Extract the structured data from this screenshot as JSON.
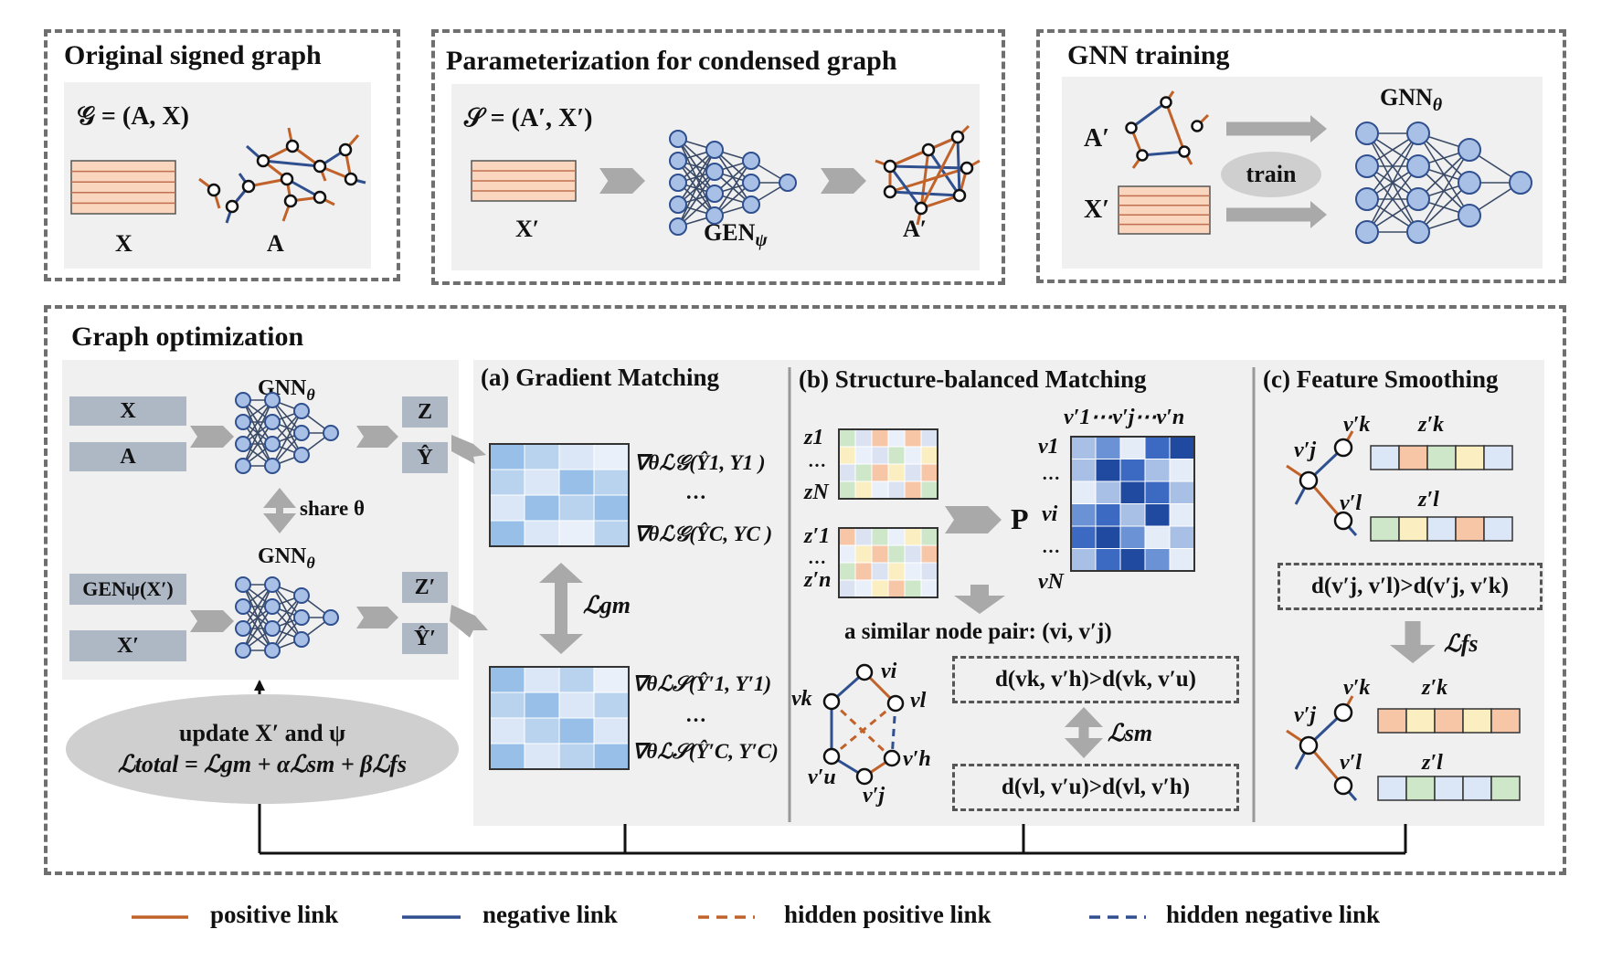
{
  "sections": {
    "original": {
      "title": "Original signed graph",
      "formula": "𝒢 = (A, X)",
      "x_label": "X",
      "a_label": "A"
    },
    "param": {
      "title": "Parameterization for condensed graph",
      "formula": "𝒮 = (A′, X′)",
      "x_label": "X′",
      "gen_label": "GEN",
      "gen_sub": "ψ",
      "a_label": "A′"
    },
    "training": {
      "title": "GNN training",
      "a_label": "A′",
      "x_label": "X′",
      "train_label": "train",
      "gnn_label": "GNN",
      "gnn_sub": "θ"
    },
    "optimization": {
      "title": "Graph optimization",
      "top_inputs": [
        "X",
        "A"
      ],
      "bottom_inputs": [
        "GENψ(X′)",
        "X′"
      ],
      "gnn_label": "GNN",
      "gnn_sub": "θ",
      "top_outputs": [
        "Z",
        "Ŷ"
      ],
      "bottom_outputs": [
        "Z′",
        "Ŷ′"
      ],
      "share_label": "share θ",
      "update_line1": "update X′ and ψ",
      "update_line2": "ℒtotal = ℒgm + αℒsm + βℒfs"
    },
    "gradient": {
      "title": "(a) Gradient Matching",
      "top_grad1": "∇θℒ𝒢(Ŷ1, Y1 )",
      "top_dots": "…",
      "top_grad2": "∇θℒ𝒢(ŶC, YC )",
      "loss": "ℒgm",
      "bot_grad1": "∇θℒ𝒮(Ŷ′1, Y′1)",
      "bot_dots": "…",
      "bot_grad2": "∇θℒ𝒮(Ŷ′C, Y′C)"
    },
    "structure": {
      "title": "(b) Structure-balanced Matching",
      "z_top": [
        "z1",
        "…",
        "zN"
      ],
      "z_bot": [
        "z′1",
        "…",
        "z′n"
      ],
      "p_label": "P",
      "p_cols": "v′1⋯v′j⋯v′n",
      "p_rows": [
        "v1",
        "…",
        "vi",
        "…",
        "vN"
      ],
      "pair_label": "a similar node pair: (vi, v′j)",
      "nodes": [
        "vk",
        "vi",
        "vl",
        "v′h",
        "v′u",
        "v′j"
      ],
      "ineq1": "d(vk, v′h)>d(vk, v′u)",
      "loss": "ℒsm",
      "ineq2": "d(vl, v′u)>d(vl, v′h)"
    },
    "smoothing": {
      "title": "(c) Feature Smoothing",
      "nodes_top": [
        "v′j",
        "v′k",
        "v′l"
      ],
      "z_labels_top": [
        "z′k",
        "z′l"
      ],
      "ineq": "d(v′j, v′l)>d(v′j, v′k)",
      "loss": "ℒfs",
      "nodes_bot": [
        "v′j",
        "v′k",
        "v′l"
      ],
      "z_labels_bot": [
        "z′k",
        "z′l"
      ]
    }
  },
  "legend": [
    {
      "label": "positive link",
      "style": "solid",
      "color": "#c0622a"
    },
    {
      "label": "negative link",
      "style": "solid",
      "color": "#2f4f8f"
    },
    {
      "label": "hidden positive link",
      "style": "dashed",
      "color": "#c0622a"
    },
    {
      "label": "hidden negative link",
      "style": "dashed",
      "color": "#2f4f8f"
    }
  ],
  "colors": {
    "positive": "#c0622a",
    "negative": "#2f4f8f",
    "node_fill": "#a9c0e6",
    "node_stroke": "#2f4f8f",
    "feature": "#f9d6bd"
  }
}
